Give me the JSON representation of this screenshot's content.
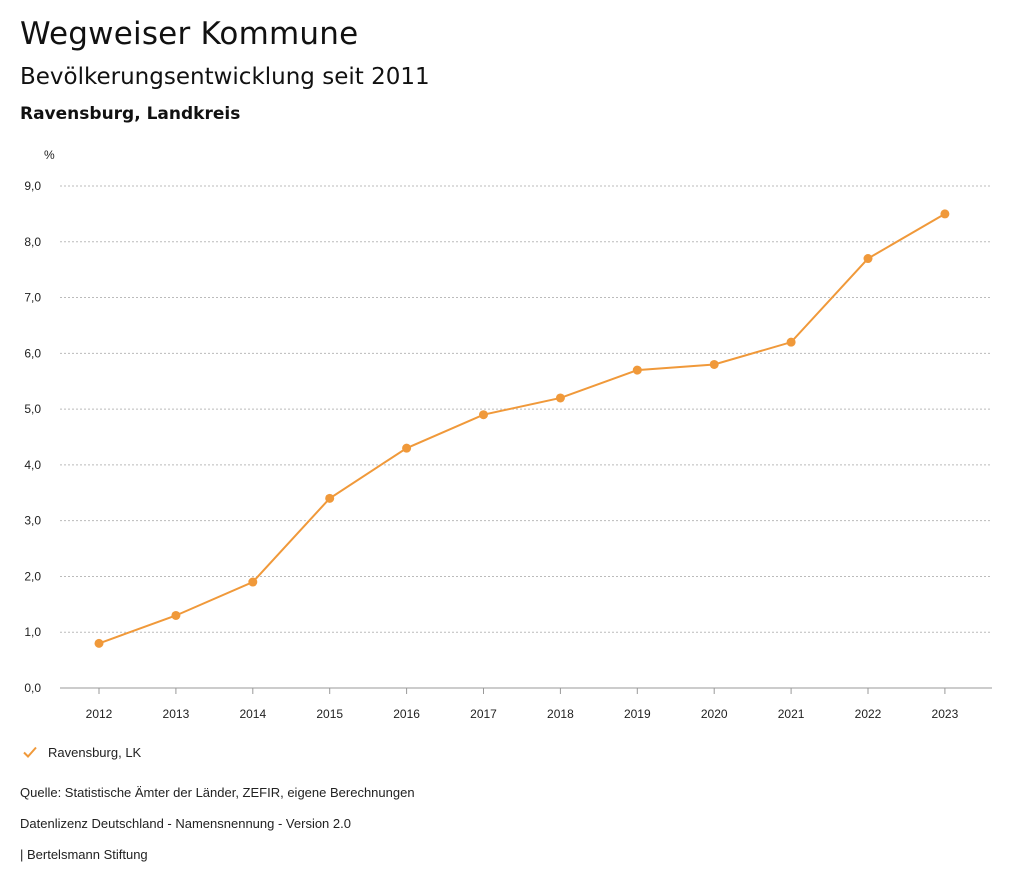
{
  "header": {
    "title": "Wegweiser Kommune",
    "subtitle": "Bevölkerungsentwicklung seit 2011",
    "region": "Ravensburg, Landkreis"
  },
  "chart_data": {
    "type": "line",
    "ylabel": "%",
    "ylim": [
      0,
      9
    ],
    "y_ticks": [
      "0,0",
      "1,0",
      "2,0",
      "3,0",
      "4,0",
      "5,0",
      "6,0",
      "7,0",
      "8,0",
      "9,0"
    ],
    "categories": [
      "2012",
      "2013",
      "2014",
      "2015",
      "2016",
      "2017",
      "2018",
      "2019",
      "2020",
      "2021",
      "2022",
      "2023"
    ],
    "series": [
      {
        "name": "Ravensburg, LK",
        "values": [
          0.8,
          1.3,
          1.9,
          3.4,
          4.3,
          4.9,
          5.2,
          5.7,
          5.8,
          6.2,
          7.7,
          8.5
        ]
      }
    ],
    "grid": true,
    "legend_position": "bottom-left",
    "colors": {
      "series": "#f0993a",
      "grid": "#bbbbbb"
    }
  },
  "footer": {
    "source": "Quelle: Statistische Ämter der Länder, ZEFIR, eigene Berechnungen",
    "license": "Datenlizenz Deutschland - Namensnennung - Version 2.0",
    "publisher": "| Bertelsmann Stiftung"
  }
}
